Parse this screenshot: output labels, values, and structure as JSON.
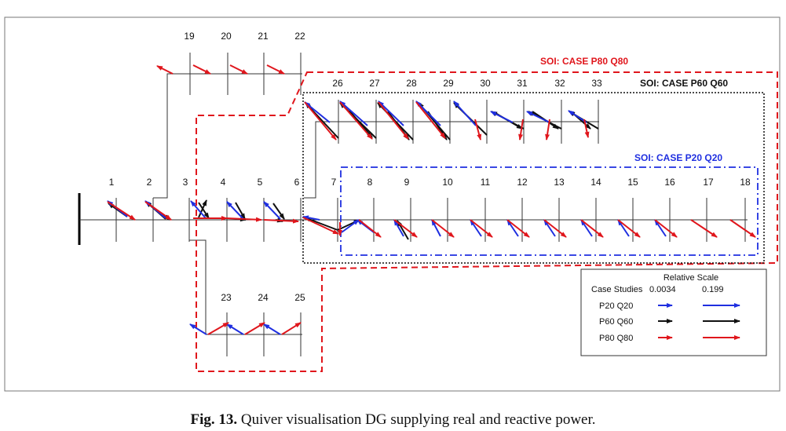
{
  "figure": {
    "caption_label": "Fig. 13.",
    "caption_text": "Quiver visualisation DG supplying real and reactive power.",
    "colors": {
      "p20": "#1f2fe0",
      "p60": "#111111",
      "p80": "#e0161c",
      "line": "#333333"
    }
  },
  "nodes": {
    "n1": "1",
    "n2": "2",
    "n3": "3",
    "n4": "4",
    "n5": "5",
    "n6": "6",
    "n7": "7",
    "n8": "8",
    "n9": "9",
    "n10": "10",
    "n11": "11",
    "n12": "12",
    "n13": "13",
    "n14": "14",
    "n15": "15",
    "n16": "16",
    "n17": "17",
    "n18": "18",
    "n19": "19",
    "n20": "20",
    "n21": "21",
    "n22": "22",
    "n23": "23",
    "n24": "24",
    "n25": "25",
    "n26": "26",
    "n27": "27",
    "n28": "28",
    "n29": "29",
    "n30": "30",
    "n31": "31",
    "n32": "32",
    "n33": "33"
  },
  "soi": {
    "p80": "SOI: CASE P80 Q80",
    "p60": "SOI: CASE P60 Q60",
    "p20": "SOI: CASE P20 Q20"
  },
  "legend": {
    "title": "Relative Scale",
    "col_label": "Case Studies",
    "min_value": "0.0034",
    "max_value": "0.199",
    "rows": [
      "P20 Q20",
      "P60 Q60",
      "P80 Q80"
    ]
  }
}
